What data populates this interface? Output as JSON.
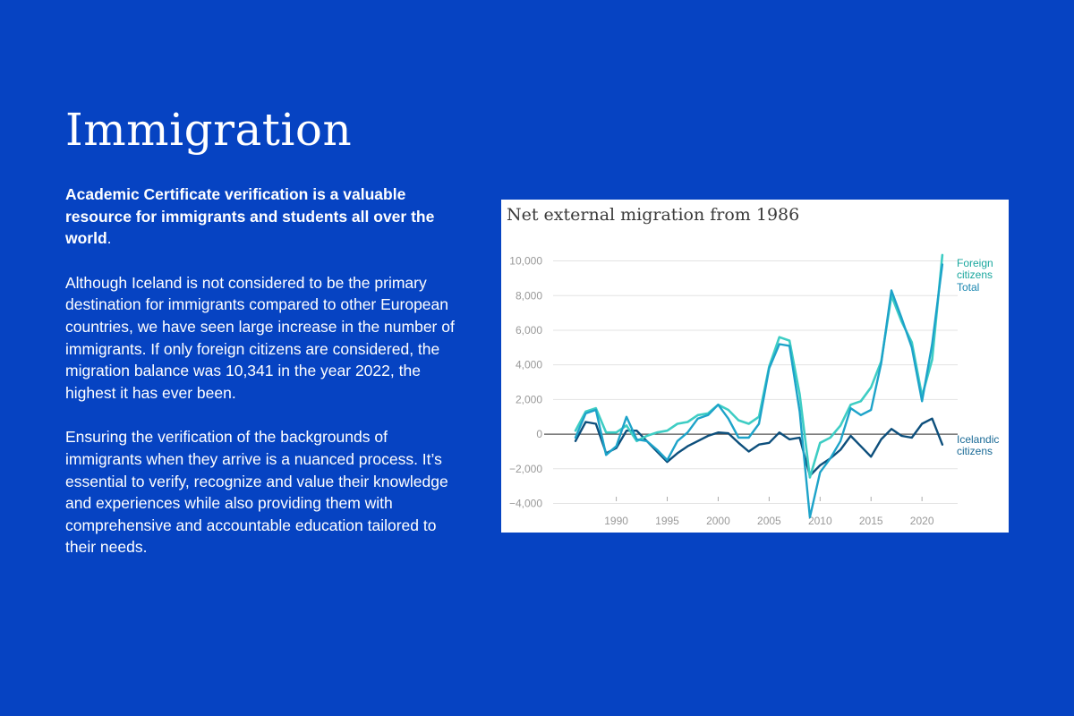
{
  "page": {
    "title": "Immigration",
    "lead_text": "Academic Certificate verification is a valuable resource for immigrants and students all over the world",
    "lead_end": ".",
    "paragraph_1": "Although Iceland is not considered to be the primary destination for immigrants compared to other European countries, we have seen large increase in the number of immigrants. If only foreign citizens are considered, the migration balance was 10,341 in the year 2022, the highest it has ever been.",
    "paragraph_2": "Ensuring the verification of the backgrounds of immigrants when they arrive is a nuanced process. It’s essential to verify, recognize and value their knowledge and experiences while also providing them with comprehensive and accountable education tailored to their needs."
  },
  "chart_data": {
    "type": "line",
    "title": "Net external migration from 1986",
    "xlabel": "",
    "ylabel": "",
    "x": [
      1986,
      1987,
      1988,
      1989,
      1990,
      1991,
      1992,
      1993,
      1994,
      1995,
      1996,
      1997,
      1998,
      1999,
      2000,
      2001,
      2002,
      2003,
      2004,
      2005,
      2006,
      2007,
      2008,
      2009,
      2010,
      2011,
      2012,
      2013,
      2014,
      2015,
      2016,
      2017,
      2018,
      2019,
      2020,
      2021,
      2022
    ],
    "x_ticks": [
      1990,
      1995,
      2000,
      2005,
      2010,
      2015,
      2020
    ],
    "y_ticks": [
      10000,
      8000,
      6000,
      4000,
      2000,
      0,
      -2000,
      -4000
    ],
    "y_tick_labels": [
      "10,000",
      "8,000",
      "6,000",
      "4,000",
      "2,000",
      "0",
      "−2,000",
      "−4,000"
    ],
    "xlim": [
      1983.8,
      2023.5
    ],
    "ylim": [
      -4800,
      10700
    ],
    "grid": true,
    "colors": {
      "foreign": "#3ecdc4",
      "total": "#1da3c9",
      "icelandic": "#0d4f7c",
      "zero_line": "#555555",
      "grid": "#e3e3e3"
    },
    "series": [
      {
        "key": "foreign",
        "label_lines": [
          "Foreign",
          "citizens"
        ],
        "values": [
          200,
          1300,
          1500,
          100,
          100,
          500,
          -400,
          -100,
          100,
          200,
          600,
          700,
          1100,
          1200,
          1700,
          1400,
          800,
          600,
          1000,
          3900,
          5600,
          5400,
          2300,
          -2500,
          -500,
          -200,
          500,
          1700,
          1900,
          2700,
          4200,
          8000,
          6500,
          5300,
          2200,
          4300,
          10341
        ]
      },
      {
        "key": "total",
        "label_lines": [
          "Total"
        ],
        "values": [
          -200,
          1200,
          1400,
          -1200,
          -700,
          1000,
          -300,
          -400,
          -900,
          -1500,
          -400,
          100,
          900,
          1100,
          1700,
          900,
          -200,
          -200,
          600,
          3800,
          5200,
          5100,
          1300,
          -4800,
          -2200,
          -1400,
          -400,
          1500,
          1100,
          1400,
          4100,
          8300,
          6700,
          5000,
          1900,
          5200,
          9800
        ]
      },
      {
        "key": "icelandic",
        "label_lines": [
          "Icelandic",
          "citizens"
        ],
        "values": [
          -400,
          700,
          600,
          -1100,
          -800,
          200,
          200,
          -400,
          -1000,
          -1600,
          -1100,
          -700,
          -400,
          -100,
          100,
          50,
          -500,
          -1000,
          -600,
          -500,
          100,
          -300,
          -200,
          -2400,
          -1800,
          -1400,
          -900,
          -100,
          -700,
          -1300,
          -300,
          300,
          -100,
          -200,
          600,
          900,
          -600
        ]
      }
    ]
  }
}
